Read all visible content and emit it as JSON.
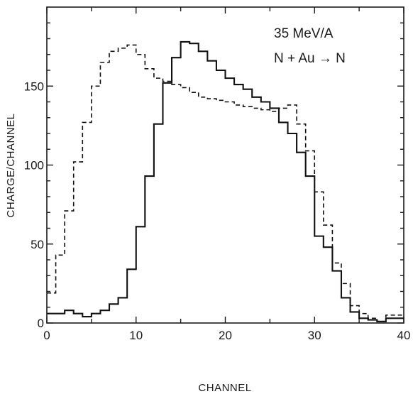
{
  "chart_data": {
    "type": "line",
    "title": "",
    "xlabel": "CHANNEL",
    "ylabel": "CHARGE/CHANNEL",
    "xlim": [
      0,
      40
    ],
    "ylim": [
      0,
      200
    ],
    "x_ticks": [
      0,
      10,
      20,
      30,
      40
    ],
    "y_ticks": [
      0,
      50,
      100,
      150
    ],
    "grid": false,
    "step_histogram": true,
    "annotations": [
      "35 MeV/A",
      "N + Au → N"
    ],
    "bin_edges": [
      0,
      1,
      2,
      3,
      4,
      5,
      6,
      7,
      8,
      9,
      10,
      11,
      12,
      13,
      14,
      15,
      16,
      17,
      18,
      19,
      20,
      21,
      22,
      23,
      24,
      25,
      26,
      27,
      28,
      29,
      30,
      31,
      32,
      33,
      34,
      35,
      36,
      37,
      38,
      39,
      40
    ],
    "series": [
      {
        "style": "solid",
        "values": [
          6,
          6,
          8,
          6,
          4,
          6,
          8,
          12,
          16,
          34,
          61,
          93,
          126,
          152,
          168,
          178,
          177,
          172,
          166,
          160,
          155,
          151,
          148,
          143,
          140,
          136,
          127,
          120,
          108,
          93,
          55,
          48,
          33,
          16,
          7,
          3,
          2,
          1,
          3,
          3
        ]
      },
      {
        "style": "dashed",
        "values": [
          19,
          43,
          71,
          102,
          127,
          150,
          165,
          172,
          174,
          176,
          170,
          161,
          155,
          153,
          151,
          149,
          146,
          143,
          142,
          141,
          140,
          138,
          137,
          136,
          135,
          134,
          136,
          138,
          126,
          109,
          83,
          62,
          38,
          25,
          11,
          6,
          3,
          1,
          5,
          5
        ]
      }
    ]
  }
}
